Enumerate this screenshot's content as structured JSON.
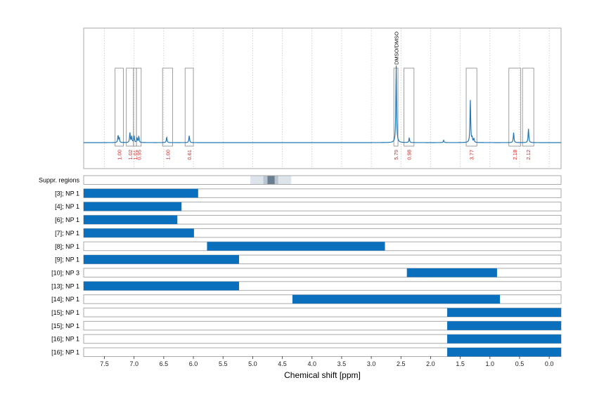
{
  "chart_data": {
    "type": "line",
    "xlabel": "Chemical shift [ppm]",
    "xlim": [
      7.85,
      -0.2
    ],
    "x_ticks": [
      "7.5",
      "7.0",
      "6.5",
      "6.0",
      "5.5",
      "5.0",
      "4.5",
      "4.0",
      "3.5",
      "3.0",
      "2.5",
      "2.0",
      "1.5",
      "1.0",
      "0.5",
      "0.0"
    ],
    "x_tick_values": [
      7.5,
      7.0,
      6.5,
      6.0,
      5.5,
      5.0,
      4.5,
      4.0,
      3.5,
      3.0,
      2.5,
      2.0,
      1.5,
      1.0,
      0.5,
      0.0
    ],
    "grid": "vertical dotted",
    "spectrum": {
      "baseline": 0.0,
      "peaks": [
        {
          "ppm": 7.27,
          "height": 0.09
        },
        {
          "ppm": 7.25,
          "height": 0.06
        },
        {
          "ppm": 7.07,
          "height": 0.13
        },
        {
          "ppm": 7.04,
          "height": 0.08
        },
        {
          "ppm": 7.0,
          "height": 0.09
        },
        {
          "ppm": 6.95,
          "height": 0.06
        },
        {
          "ppm": 6.92,
          "height": 0.08
        },
        {
          "ppm": 6.45,
          "height": 0.07
        },
        {
          "ppm": 6.07,
          "height": 0.09
        },
        {
          "ppm": 2.58,
          "height": 1.0
        },
        {
          "ppm": 2.36,
          "height": 0.06
        },
        {
          "ppm": 1.78,
          "height": 0.03
        },
        {
          "ppm": 1.33,
          "height": 0.55
        },
        {
          "ppm": 1.3,
          "height": 0.06
        },
        {
          "ppm": 1.27,
          "height": 0.05
        },
        {
          "ppm": 0.6,
          "height": 0.13
        },
        {
          "ppm": 0.35,
          "height": 0.18
        }
      ]
    },
    "integration_regions": [
      {
        "from": 7.32,
        "to": 7.18,
        "value": "1.00"
      },
      {
        "from": 7.13,
        "to": 7.01,
        "value": "1.02"
      },
      {
        "from": 7.01,
        "to": 6.96,
        "value": "1.01"
      },
      {
        "from": 6.96,
        "to": 6.88,
        "value": "0.95"
      },
      {
        "from": 6.52,
        "to": 6.35,
        "value": "1.00"
      },
      {
        "from": 6.14,
        "to": 6.0,
        "value": "0.61"
      },
      {
        "from": 2.62,
        "to": 2.55,
        "value": "5.79"
      },
      {
        "from": 2.45,
        "to": 2.28,
        "value": "0.98"
      },
      {
        "from": 1.4,
        "to": 1.22,
        "value": "3.77"
      },
      {
        "from": 0.68,
        "to": 0.48,
        "value": "2.18"
      },
      {
        "from": 0.45,
        "to": 0.26,
        "value": "2.12"
      }
    ],
    "annotations": [
      {
        "ppm": 2.58,
        "text": "DMSO/DMSO"
      }
    ],
    "suppression_row": {
      "label": "Suppr. regions",
      "bands": [
        {
          "from": 5.04,
          "to": 4.35,
          "shade": "light"
        },
        {
          "from": 4.82,
          "to": 4.57,
          "shade": "mid"
        },
        {
          "from": 4.75,
          "to": 4.63,
          "shade": "dark"
        }
      ]
    },
    "range_rows": [
      {
        "label": "[3]; NP 1",
        "from": 7.85,
        "to": 5.92
      },
      {
        "label": "[4]; NP 1",
        "from": 7.85,
        "to": 6.2
      },
      {
        "label": "[6]; NP 1",
        "from": 7.85,
        "to": 6.27
      },
      {
        "label": "[7]; NP 1",
        "from": 7.85,
        "to": 5.99
      },
      {
        "label": "[8]; NP 1",
        "from": 5.77,
        "to": 2.77
      },
      {
        "label": "[9]; NP 1",
        "from": 7.85,
        "to": 5.23
      },
      {
        "label": "[10]; NP 3",
        "from": 2.4,
        "to": 0.88
      },
      {
        "label": "[13]; NP 1",
        "from": 7.85,
        "to": 5.23
      },
      {
        "label": "[14]; NP 1",
        "from": 4.33,
        "to": 0.83
      },
      {
        "label": "[15]; NP 1",
        "from": 1.72,
        "to": -0.2
      },
      {
        "label": "[15]; NP 1",
        "from": 1.72,
        "to": -0.2
      },
      {
        "label": "[16]; NP 1",
        "from": 1.72,
        "to": -0.2
      },
      {
        "label": "[16]; NP 1",
        "from": 1.72,
        "to": -0.2
      }
    ],
    "colors": {
      "spectrum": "#1f77b4",
      "bar": "#0a6fbd",
      "integral_text": "#d62728",
      "frame": "#aaaaaa",
      "region_box": "#888888",
      "suppr_light": "#dde4ec",
      "suppr_mid": "#b9c5d1",
      "suppr_dark": "#6b7e90"
    }
  }
}
